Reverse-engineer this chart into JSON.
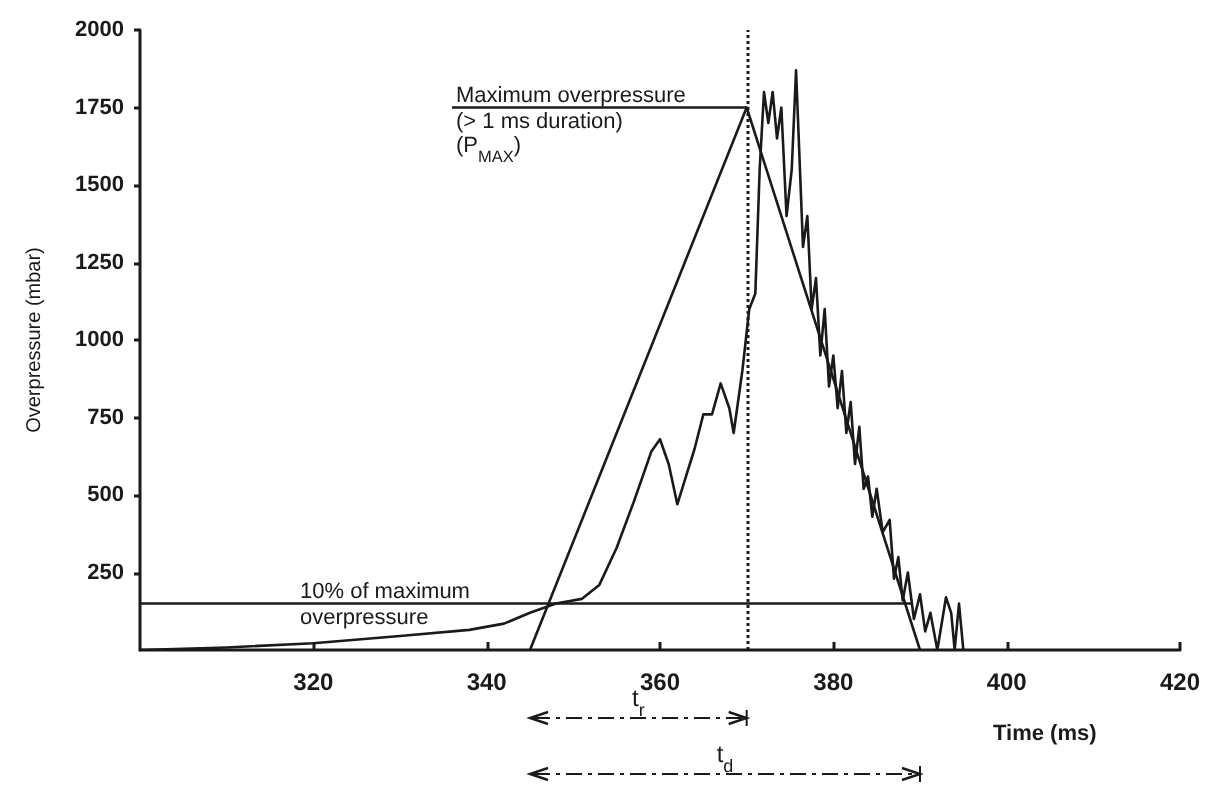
{
  "chart_data": {
    "type": "line",
    "xlabel": "Time (ms)",
    "ylabel": "Overpressure (mbar)",
    "xlim": [
      300,
      420
    ],
    "xticks": [
      320,
      340,
      360,
      380,
      400,
      420
    ],
    "ylim": [
      0,
      2000
    ],
    "yticks": [
      250,
      500,
      750,
      1000,
      1250,
      1500,
      1750,
      2000
    ],
    "grid": false,
    "marker": "none",
    "line_style": "solid",
    "series": [
      {
        "color": "#1a1a1a",
        "x": [
          300,
          310,
          320,
          330,
          338,
          342,
          345,
          348,
          351,
          353,
          355,
          357,
          359,
          360,
          361,
          362,
          363,
          364,
          365,
          366,
          367,
          368,
          368.5,
          369.5,
          370.3,
          371,
          371.5,
          372,
          372.5,
          373,
          373.5,
          374,
          374.6,
          375.2,
          375.7,
          376.5,
          377,
          377.5,
          378,
          378.5,
          379,
          379.5,
          380,
          380.5,
          381,
          381.5,
          382,
          382.5,
          383,
          383.5,
          384,
          384.5,
          385,
          385.7,
          386.5,
          387,
          387.5,
          388,
          388.6,
          389.3,
          390,
          390.6,
          391.2,
          392,
          393,
          393.6,
          394,
          394.5,
          395
        ],
        "values": [
          0,
          8,
          22,
          45,
          65,
          85,
          120,
          150,
          165,
          210,
          330,
          480,
          640,
          680,
          600,
          470,
          560,
          650,
          760,
          760,
          860,
          780,
          700,
          900,
          1100,
          1150,
          1550,
          1800,
          1700,
          1800,
          1650,
          1750,
          1400,
          1550,
          1870,
          1300,
          1400,
          1100,
          1200,
          950,
          1100,
          850,
          950,
          780,
          900,
          700,
          800,
          600,
          720,
          520,
          560,
          430,
          520,
          380,
          420,
          230,
          300,
          160,
          250,
          100,
          180,
          60,
          120,
          0,
          170,
          120,
          0,
          150,
          0
        ]
      },
      {
        "color": "#1a1a1a",
        "x": [
          345,
          370,
          390
        ],
        "values": [
          0,
          1750,
          0
        ]
      },
      {
        "color": "#1a1a1a",
        "x": [
          300,
          389
        ],
        "values": [
          150,
          150
        ]
      },
      {
        "color": "#1a1a1a",
        "x": [
          336,
          370
        ],
        "values": [
          1750,
          1750
        ]
      }
    ],
    "ref_lines": [
      {
        "axis": "x",
        "value": 370,
        "color": "#1a1a1a",
        "line_style": "dotted"
      }
    ],
    "annotations": [
      {
        "text": "Maximum overpressure\n(> 1 ms duration)\n(P$_{MAX}$)",
        "x": 336,
        "y": 1750
      },
      {
        "text": "10% of maximum\noverpressure",
        "x": 318,
        "y": 150
      },
      "t$_{r}$",
      "t$_{d}$"
    ]
  }
}
